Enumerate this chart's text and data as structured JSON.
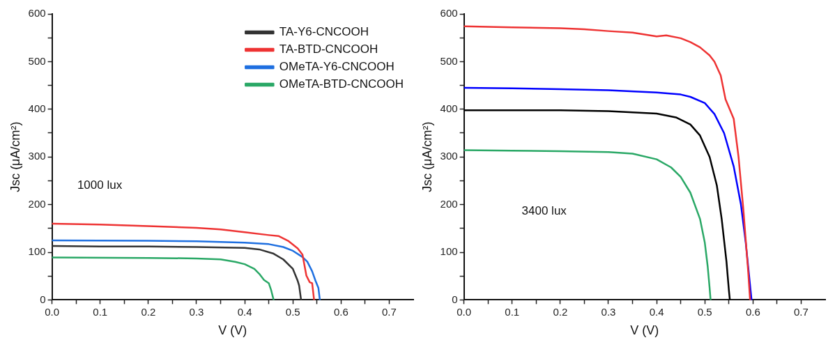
{
  "chart_data": [
    {
      "type": "line",
      "xlabel": "V (V)",
      "ylabel": "Jsc (μA/cm²)",
      "annotations": [
        "1000 lux"
      ],
      "xlim": [
        0,
        0.75
      ],
      "ylim": [
        0,
        600
      ],
      "xticks": [
        {
          "value": 0,
          "label": "0.0"
        },
        {
          "value": 0.05,
          "label": null
        },
        {
          "value": 0.1,
          "label": "0.1"
        },
        {
          "value": 0.15,
          "label": null
        },
        {
          "value": 0.2,
          "label": "0.2"
        },
        {
          "value": 0.25,
          "label": null
        },
        {
          "value": 0.3,
          "label": "0.3"
        },
        {
          "value": 0.35,
          "label": null
        },
        {
          "value": 0.4,
          "label": "0.4"
        },
        {
          "value": 0.45,
          "label": null
        },
        {
          "value": 0.5,
          "label": "0.5"
        },
        {
          "value": 0.55,
          "label": null
        },
        {
          "value": 0.6,
          "label": "0.6"
        },
        {
          "value": 0.65,
          "label": null
        },
        {
          "value": 0.7,
          "label": "0.7"
        }
      ],
      "yticks": [
        0,
        {
          "value": 50,
          "label": null
        },
        100,
        {
          "value": 150,
          "label": null
        },
        200,
        {
          "value": 250,
          "label": null
        },
        300,
        {
          "value": 350,
          "label": null
        },
        400,
        {
          "value": 450,
          "label": null
        },
        500,
        {
          "value": 550,
          "label": null
        },
        600
      ],
      "grid": false,
      "legend": "top right",
      "marker": "none",
      "line_style": "solid",
      "series": [
        {
          "name": "TA-Y6-CNCOOH",
          "color": "#333333",
          "x": [
            0,
            0.1,
            0.2,
            0.3,
            0.4,
            0.43,
            0.46,
            0.48,
            0.5,
            0.51,
            0.513,
            0.517
          ],
          "values": [
            113,
            112,
            112,
            111,
            109,
            106,
            97,
            85,
            65,
            40,
            30,
            0
          ]
        },
        {
          "name": "TA-BTD-CNCOOH",
          "color": "#ee3333",
          "x": [
            0,
            0.1,
            0.2,
            0.3,
            0.35,
            0.4,
            0.45,
            0.47,
            0.49,
            0.51,
            0.52,
            0.528,
            0.535,
            0.54,
            0.544
          ],
          "values": [
            160,
            158,
            155,
            151,
            148,
            142,
            136,
            134,
            124,
            108,
            95,
            51,
            37,
            35,
            0
          ]
        },
        {
          "name": "OMeTA-Y6-CNCOOH",
          "color": "#1e6fe0",
          "x": [
            0,
            0.2,
            0.3,
            0.4,
            0.45,
            0.48,
            0.5,
            0.52,
            0.53,
            0.54,
            0.547,
            0.553,
            0.556
          ],
          "values": [
            125,
            124,
            123,
            120,
            117,
            111,
            103,
            90,
            80,
            60,
            40,
            25,
            0
          ]
        },
        {
          "name": "OMeTA-BTD-CNCOOH",
          "color": "#2aa866",
          "x": [
            0,
            0.2,
            0.3,
            0.35,
            0.38,
            0.4,
            0.42,
            0.43,
            0.44,
            0.45,
            0.455,
            0.46
          ],
          "values": [
            89,
            88,
            87,
            85,
            80,
            75,
            65,
            55,
            42,
            35,
            20,
            0
          ]
        }
      ]
    },
    {
      "type": "line",
      "xlabel": "V (V)",
      "ylabel": "Jsc (μA/cm²)",
      "annotations": [
        "3400 lux"
      ],
      "xlim": [
        0,
        0.75
      ],
      "ylim": [
        0,
        600
      ],
      "xticks": [
        {
          "value": 0,
          "label": "0.0"
        },
        {
          "value": 0.05,
          "label": null
        },
        {
          "value": 0.1,
          "label": "0.1"
        },
        {
          "value": 0.15,
          "label": null
        },
        {
          "value": 0.2,
          "label": "0.2"
        },
        {
          "value": 0.25,
          "label": null
        },
        {
          "value": 0.3,
          "label": "0.3"
        },
        {
          "value": 0.35,
          "label": null
        },
        {
          "value": 0.4,
          "label": "0.4"
        },
        {
          "value": 0.45,
          "label": null
        },
        {
          "value": 0.5,
          "label": "0.5"
        },
        {
          "value": 0.55,
          "label": null
        },
        {
          "value": 0.6,
          "label": "0.6"
        },
        {
          "value": 0.65,
          "label": null
        },
        {
          "value": 0.7,
          "label": "0.7"
        }
      ],
      "yticks": [
        0,
        {
          "value": 50,
          "label": null
        },
        100,
        {
          "value": 150,
          "label": null
        },
        200,
        {
          "value": 250,
          "label": null
        },
        300,
        {
          "value": 350,
          "label": null
        },
        400,
        {
          "value": 450,
          "label": null
        },
        500,
        {
          "value": 550,
          "label": null
        },
        600
      ],
      "grid": false,
      "marker": "none",
      "line_style": "solid",
      "series": [
        {
          "color": "#000000",
          "x": [
            0,
            0.1,
            0.2,
            0.3,
            0.4,
            0.44,
            0.47,
            0.49,
            0.51,
            0.525,
            0.535,
            0.545,
            0.55,
            0.552
          ],
          "values": [
            398,
            398,
            398,
            396,
            391,
            383,
            368,
            345,
            300,
            240,
            170,
            80,
            20,
            0
          ]
        },
        {
          "color": "#ee3333",
          "x": [
            0,
            0.1,
            0.2,
            0.25,
            0.3,
            0.35,
            0.4,
            0.42,
            0.45,
            0.47,
            0.49,
            0.51,
            0.52,
            0.533,
            0.543,
            0.56,
            0.57,
            0.58,
            0.59,
            0.594
          ],
          "values": [
            574,
            572,
            570,
            568,
            564,
            561,
            553,
            555,
            549,
            541,
            530,
            513,
            500,
            471,
            421,
            380,
            300,
            190,
            60,
            0
          ]
        },
        {
          "color": "#0000ff",
          "x": [
            0,
            0.1,
            0.2,
            0.3,
            0.4,
            0.45,
            0.47,
            0.5,
            0.52,
            0.54,
            0.56,
            0.575,
            0.585,
            0.592,
            0.597
          ],
          "values": [
            445,
            444,
            442,
            440,
            435,
            431,
            426,
            413,
            390,
            350,
            280,
            200,
            120,
            50,
            0
          ]
        },
        {
          "color": "#2aa866",
          "x": [
            0,
            0.1,
            0.2,
            0.3,
            0.35,
            0.4,
            0.43,
            0.45,
            0.47,
            0.49,
            0.5,
            0.506,
            0.51,
            0.512
          ],
          "values": [
            314,
            313,
            312,
            310,
            307,
            295,
            278,
            258,
            225,
            170,
            120,
            70,
            25,
            0
          ]
        }
      ]
    }
  ]
}
